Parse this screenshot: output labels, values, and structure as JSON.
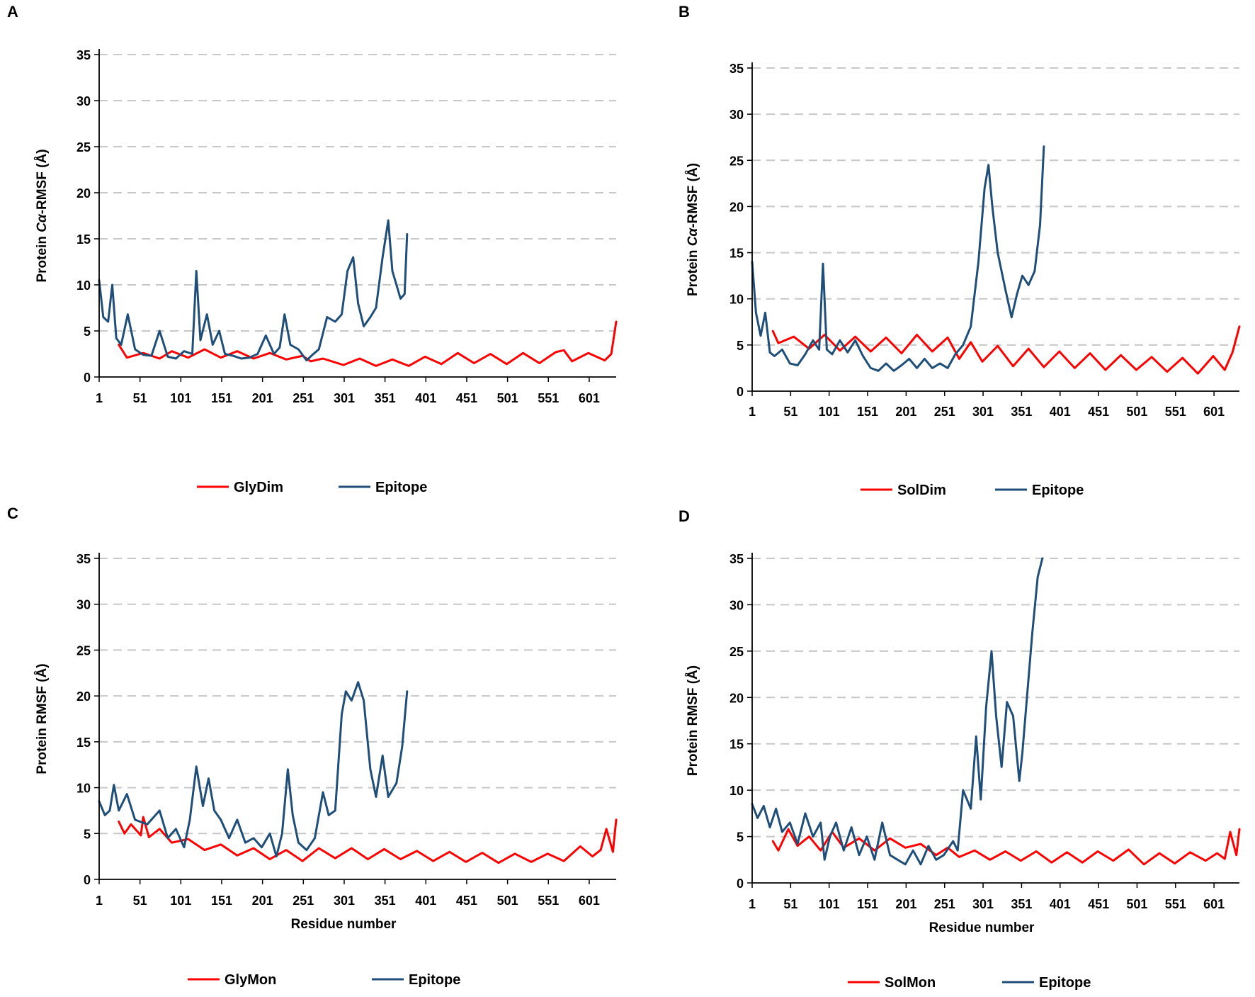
{
  "chart_data": [
    {
      "panel": "A",
      "type": "line",
      "title": "",
      "xlabel": "",
      "ylabel": "Protein Cα-RMSF (Å)",
      "ylabel_parts": [
        "Protein ",
        "Cα",
        "-RMSF (Å)"
      ],
      "xlim": [
        1,
        634
      ],
      "ylim": [
        0,
        35
      ],
      "xticks": [
        "1",
        "51",
        "101",
        "151",
        "201",
        "251",
        "301",
        "351",
        "401",
        "451",
        "501",
        "551",
        "601"
      ],
      "yticks": [
        "0",
        "5",
        "10",
        "15",
        "20",
        "25",
        "30",
        "35"
      ],
      "grid": "horizontal dashed",
      "legend_position": "bottom",
      "series": [
        {
          "name": "GlyDim",
          "color": "#ff0000",
          "x": [
            25,
            35,
            55,
            75,
            90,
            110,
            130,
            150,
            170,
            190,
            210,
            230,
            250,
            260,
            275,
            300,
            320,
            340,
            360,
            380,
            400,
            420,
            440,
            460,
            480,
            500,
            520,
            540,
            560,
            570,
            580,
            600,
            620,
            628,
            634
          ],
          "values": [
            3.5,
            2.1,
            2.6,
            2.0,
            2.8,
            2.1,
            3.0,
            2.1,
            2.8,
            2.0,
            2.6,
            1.9,
            2.3,
            1.7,
            2.0,
            1.3,
            2.0,
            1.2,
            1.9,
            1.2,
            2.2,
            1.4,
            2.6,
            1.5,
            2.5,
            1.4,
            2.6,
            1.5,
            2.7,
            2.9,
            1.7,
            2.6,
            1.8,
            2.5,
            6.0
          ]
        },
        {
          "name": "Epitope",
          "color": "#1f4e79",
          "x": [
            1,
            6,
            12,
            17,
            22,
            28,
            36,
            45,
            55,
            65,
            75,
            85,
            95,
            105,
            115,
            120,
            125,
            133,
            140,
            148,
            155,
            165,
            175,
            185,
            195,
            205,
            215,
            222,
            228,
            235,
            245,
            255,
            262,
            270,
            280,
            290,
            298,
            305,
            312,
            318,
            325,
            333,
            340,
            348,
            355,
            360,
            365,
            370,
            375,
            378
          ],
          "values": [
            10.5,
            6.5,
            6.0,
            10.0,
            4.2,
            3.5,
            6.8,
            3.0,
            2.4,
            2.3,
            5.0,
            2.2,
            2.0,
            2.8,
            2.5,
            11.5,
            4.0,
            6.8,
            3.5,
            5.0,
            2.5,
            2.3,
            2.0,
            2.1,
            2.5,
            4.5,
            2.5,
            3.2,
            6.8,
            3.5,
            3.0,
            1.8,
            2.4,
            3.0,
            6.5,
            6.0,
            6.8,
            11.5,
            13.0,
            8.0,
            5.5,
            6.5,
            7.5,
            13.0,
            17.0,
            11.5,
            10.0,
            8.5,
            9.0,
            15.5
          ]
        }
      ]
    },
    {
      "panel": "B",
      "type": "line",
      "title": "",
      "xlabel": "",
      "ylabel": "Protein Cα-RMSF (Å)",
      "ylabel_parts": [
        "Protein ",
        "Cα",
        "-RMSF (Å)"
      ],
      "xlim": [
        1,
        634
      ],
      "ylim": [
        0,
        35
      ],
      "xticks": [
        "1",
        "51",
        "101",
        "151",
        "201",
        "251",
        "301",
        "351",
        "401",
        "451",
        "501",
        "551",
        "601"
      ],
      "yticks": [
        "0",
        "5",
        "10",
        "15",
        "20",
        "25",
        "30",
        "35"
      ],
      "grid": "horizontal dashed",
      "legend_position": "bottom",
      "series": [
        {
          "name": "SolDim",
          "color": "#ff0000",
          "x": [
            28,
            35,
            55,
            75,
            95,
            115,
            135,
            155,
            175,
            195,
            215,
            235,
            255,
            270,
            285,
            300,
            320,
            340,
            360,
            380,
            400,
            420,
            440,
            460,
            480,
            500,
            520,
            540,
            560,
            580,
            600,
            615,
            625,
            634
          ],
          "values": [
            6.5,
            5.2,
            5.9,
            4.6,
            6.1,
            4.4,
            5.9,
            4.3,
            5.8,
            4.1,
            6.1,
            4.3,
            5.8,
            3.5,
            5.3,
            3.2,
            4.9,
            2.7,
            4.6,
            2.6,
            4.3,
            2.5,
            4.1,
            2.3,
            3.9,
            2.3,
            3.7,
            2.1,
            3.6,
            1.9,
            3.8,
            2.3,
            4.2,
            7.0
          ]
        },
        {
          "name": "Epitope",
          "color": "#1f4e79",
          "x": [
            1,
            6,
            12,
            18,
            24,
            30,
            40,
            50,
            60,
            70,
            80,
            88,
            93,
            98,
            105,
            115,
            125,
            135,
            145,
            155,
            165,
            175,
            185,
            195,
            205,
            215,
            225,
            235,
            245,
            255,
            265,
            275,
            285,
            295,
            303,
            308,
            313,
            320,
            330,
            338,
            345,
            352,
            360,
            368,
            375,
            380
          ],
          "values": [
            14.0,
            8.5,
            6.0,
            8.5,
            4.2,
            3.8,
            4.5,
            3.0,
            2.8,
            4.0,
            5.5,
            4.5,
            13.8,
            4.5,
            4.0,
            5.5,
            4.2,
            5.5,
            3.8,
            2.5,
            2.2,
            3.0,
            2.2,
            2.8,
            3.5,
            2.5,
            3.5,
            2.5,
            3.0,
            2.5,
            4.0,
            5.0,
            7.0,
            14.0,
            22.0,
            24.5,
            20.0,
            15.0,
            11.0,
            8.0,
            10.5,
            12.5,
            11.5,
            13.0,
            18.0,
            26.5
          ]
        }
      ]
    },
    {
      "panel": "C",
      "type": "line",
      "title": "",
      "xlabel": "Residue number",
      "ylabel": "Protein RMSF (Å)",
      "ylabel_parts": [
        "Protein RMSF (Å)"
      ],
      "xlim": [
        1,
        634
      ],
      "ylim": [
        0,
        35
      ],
      "xticks": [
        "1",
        "51",
        "101",
        "151",
        "201",
        "251",
        "301",
        "351",
        "401",
        "451",
        "501",
        "551",
        "601"
      ],
      "yticks": [
        "0",
        "5",
        "10",
        "15",
        "20",
        "25",
        "30",
        "35"
      ],
      "grid": "horizontal dashed",
      "legend_position": "bottom",
      "series": [
        {
          "name": "GlyMon",
          "color": "#ff0000",
          "x": [
            25,
            32,
            40,
            52,
            55,
            62,
            75,
            90,
            110,
            130,
            150,
            170,
            190,
            210,
            230,
            250,
            270,
            290,
            310,
            330,
            350,
            370,
            390,
            410,
            430,
            450,
            470,
            490,
            510,
            530,
            550,
            570,
            590,
            605,
            615,
            622,
            630,
            634
          ],
          "values": [
            6.3,
            5.0,
            6.0,
            4.8,
            6.8,
            4.6,
            5.5,
            4.0,
            4.4,
            3.2,
            3.8,
            2.6,
            3.4,
            2.2,
            3.2,
            2.0,
            3.4,
            2.3,
            3.4,
            2.2,
            3.3,
            2.2,
            3.1,
            2.0,
            3.0,
            1.9,
            2.9,
            1.8,
            2.8,
            1.9,
            2.8,
            2.0,
            3.6,
            2.5,
            3.2,
            5.5,
            3.0,
            6.5
          ]
        },
        {
          "name": "Epitope",
          "color": "#1f4e79",
          "x": [
            1,
            8,
            14,
            19,
            25,
            35,
            45,
            60,
            75,
            85,
            95,
            105,
            112,
            120,
            128,
            135,
            142,
            150,
            160,
            170,
            180,
            190,
            200,
            210,
            218,
            225,
            232,
            238,
            245,
            255,
            265,
            275,
            282,
            290,
            298,
            303,
            310,
            318,
            325,
            333,
            340,
            348,
            355,
            365,
            372,
            378
          ],
          "values": [
            8.5,
            7.0,
            7.5,
            10.3,
            7.5,
            9.3,
            6.5,
            6.0,
            7.5,
            4.5,
            5.5,
            3.5,
            6.5,
            12.3,
            8.0,
            11.0,
            7.5,
            6.5,
            4.5,
            6.5,
            4.0,
            4.5,
            3.5,
            5.0,
            2.5,
            5.0,
            12.0,
            7.0,
            4.0,
            3.2,
            4.5,
            9.5,
            7.0,
            7.5,
            18.0,
            20.5,
            19.5,
            21.5,
            19.5,
            12.0,
            9.0,
            13.5,
            9.0,
            10.5,
            14.5,
            20.5
          ]
        }
      ]
    },
    {
      "panel": "D",
      "type": "line",
      "title": "",
      "xlabel": "Residue number",
      "ylabel": "Protein RMSF (Å)",
      "ylabel_parts": [
        "Protein RMSF (Å)"
      ],
      "xlim": [
        1,
        634
      ],
      "ylim": [
        0,
        35
      ],
      "xticks": [
        "1",
        "51",
        "101",
        "151",
        "201",
        "251",
        "301",
        "351",
        "401",
        "451",
        "501",
        "551",
        "601"
      ],
      "yticks": [
        "0",
        "5",
        "10",
        "15",
        "20",
        "25",
        "30",
        "35"
      ],
      "grid": "horizontal dashed",
      "legend_position": "bottom",
      "series": [
        {
          "name": "SolMon",
          "color": "#ff0000",
          "x": [
            28,
            35,
            48,
            60,
            75,
            90,
            105,
            120,
            140,
            160,
            180,
            200,
            220,
            240,
            255,
            270,
            290,
            310,
            330,
            350,
            370,
            390,
            410,
            430,
            450,
            470,
            490,
            510,
            530,
            550,
            570,
            590,
            605,
            615,
            622,
            630,
            634
          ],
          "values": [
            4.5,
            3.5,
            5.8,
            4.0,
            5.0,
            3.5,
            5.5,
            3.8,
            4.8,
            3.5,
            4.8,
            3.8,
            4.2,
            3.0,
            3.8,
            2.8,
            3.5,
            2.5,
            3.4,
            2.4,
            3.4,
            2.2,
            3.3,
            2.2,
            3.4,
            2.4,
            3.6,
            2.0,
            3.2,
            2.1,
            3.3,
            2.4,
            3.2,
            2.6,
            5.5,
            3.0,
            5.8
          ]
        },
        {
          "name": "Epitope",
          "color": "#1f4e79",
          "x": [
            1,
            8,
            16,
            24,
            32,
            40,
            50,
            60,
            70,
            80,
            90,
            95,
            102,
            110,
            120,
            130,
            140,
            150,
            160,
            170,
            180,
            190,
            200,
            210,
            220,
            230,
            240,
            250,
            262,
            268,
            275,
            285,
            292,
            298,
            305,
            312,
            318,
            325,
            332,
            340,
            348,
            352,
            358,
            365,
            372,
            378
          ],
          "values": [
            8.5,
            7.0,
            8.3,
            6.0,
            8.0,
            5.5,
            6.5,
            4.2,
            7.5,
            5.0,
            6.5,
            2.5,
            5.0,
            6.5,
            3.5,
            6.0,
            3.0,
            5.0,
            2.5,
            6.5,
            3.0,
            2.5,
            2.0,
            3.5,
            2.0,
            4.0,
            2.5,
            3.0,
            4.5,
            3.5,
            10.0,
            8.0,
            15.8,
            9.0,
            19.0,
            25.0,
            18.0,
            12.5,
            19.5,
            18.0,
            11.0,
            14.0,
            20.0,
            27.0,
            33.0,
            35.0
          ]
        }
      ]
    }
  ]
}
